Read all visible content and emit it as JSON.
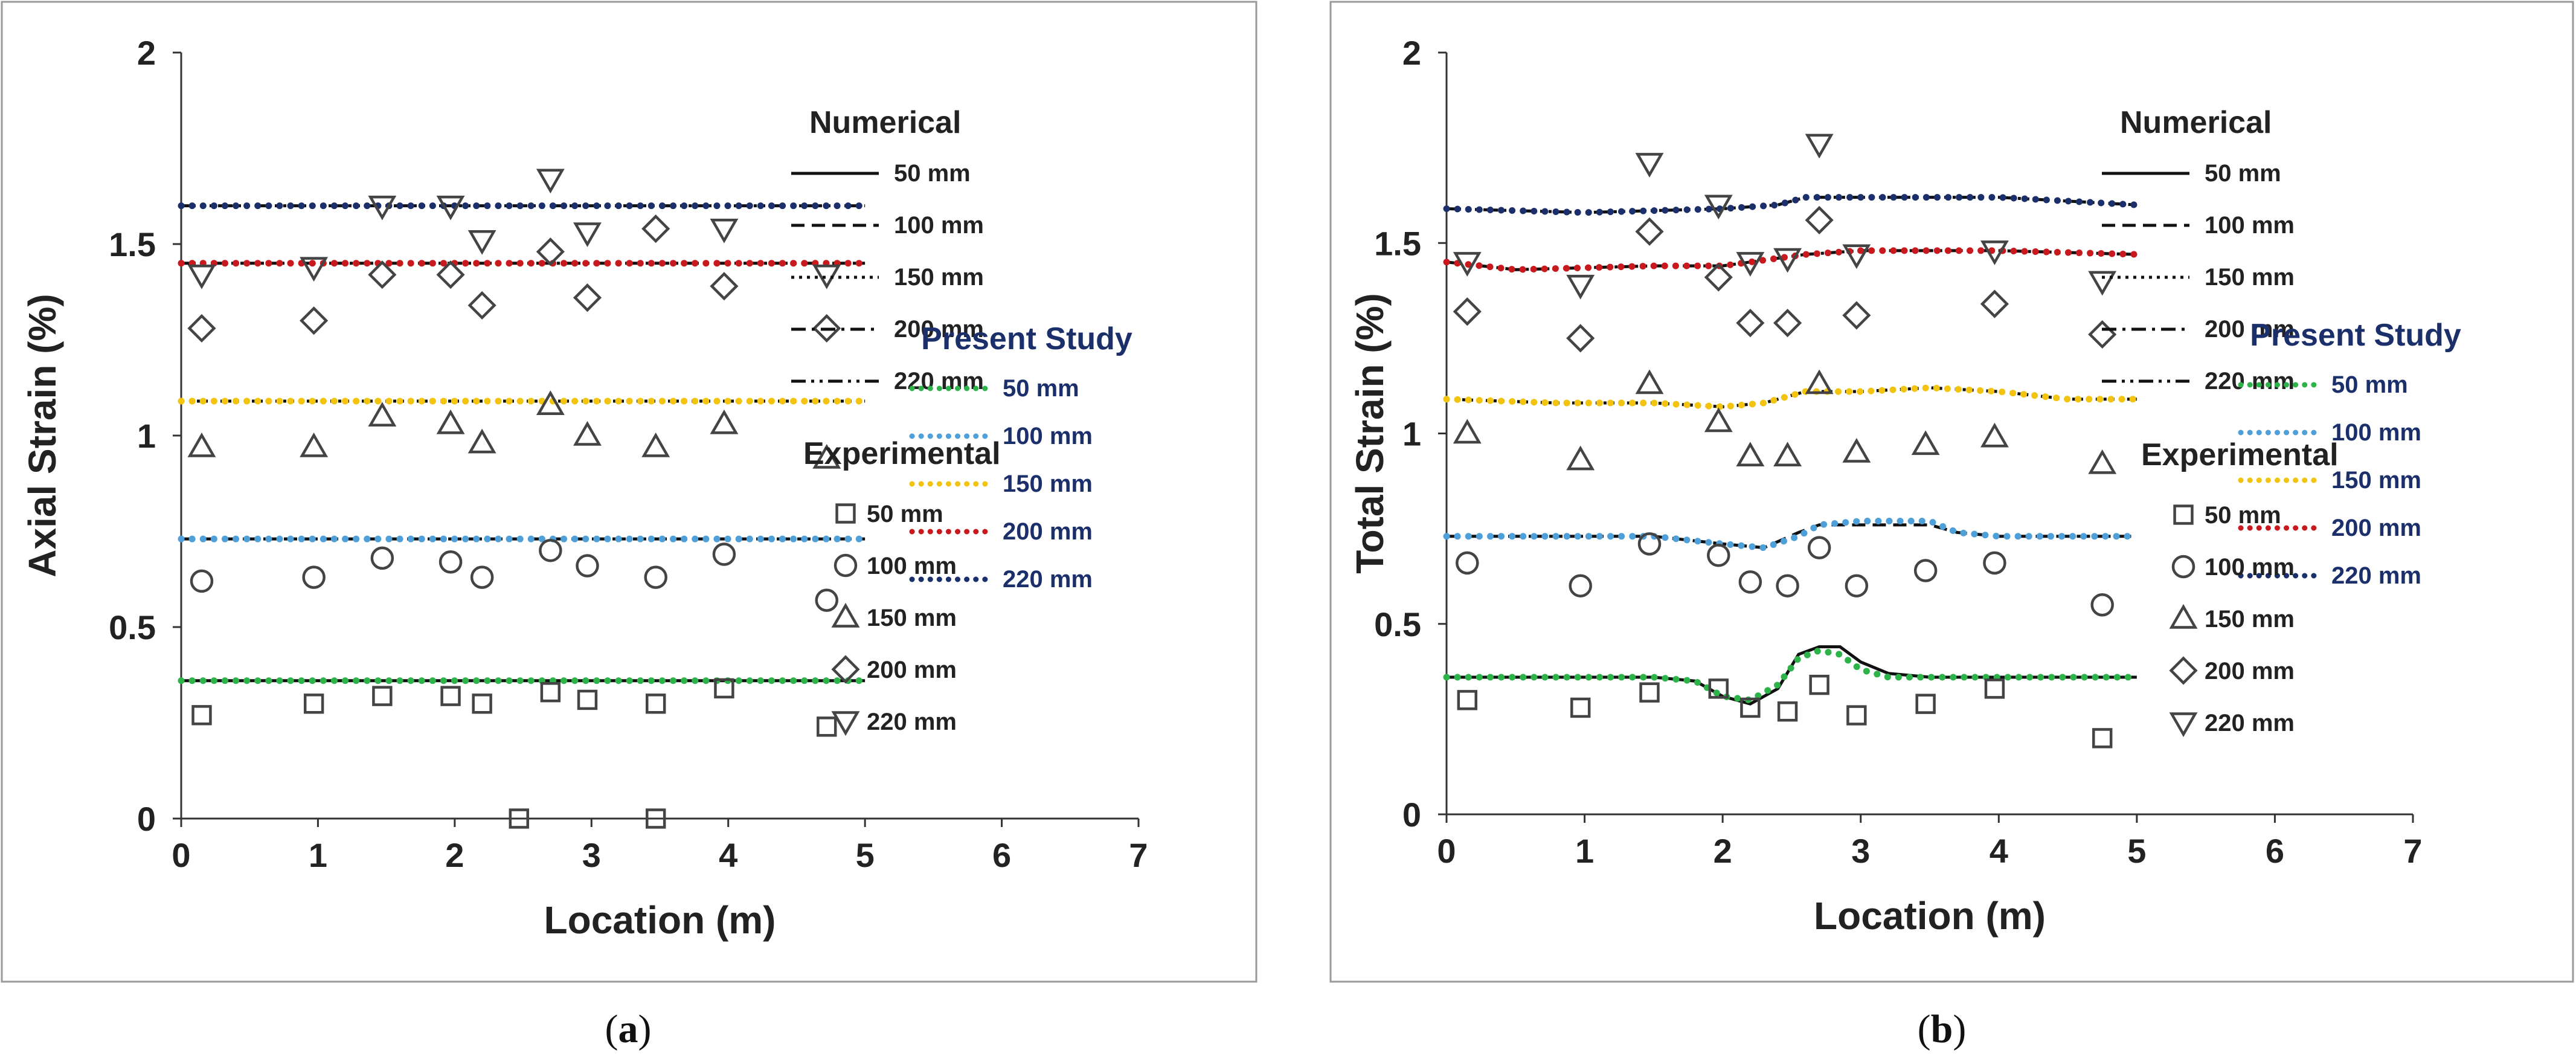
{
  "chart_data": [
    {
      "type": "line+scatter",
      "panel_label": "a",
      "xlabel": "Location (m)",
      "ylabel": "Axial Strain (%)",
      "xlim": [
        0,
        7
      ],
      "ylim": [
        0,
        2
      ],
      "xticks": [
        0,
        1,
        2,
        3,
        4,
        5,
        6,
        7
      ],
      "yticks": [
        0,
        0.5,
        1,
        1.5,
        2
      ],
      "ytick_labels": [
        "0",
        "0.5",
        "1",
        "1.5",
        "2"
      ],
      "legend": {
        "numerical_title": "Numerical",
        "present_title": "Present Study",
        "experimental_title": "Experimental"
      },
      "colors": {
        "50 mm": "#2db34a",
        "100 mm": "#4f9fd8",
        "150 mm": "#f2c30f",
        "200 mm": "#c8191e",
        "220 mm": "#1b2f6b"
      },
      "numerical": [
        {
          "name": "50 mm",
          "style": "solid",
          "x": [
            0,
            5
          ],
          "y": [
            0.36,
            0.36
          ]
        },
        {
          "name": "100 mm",
          "style": "dashed",
          "x": [
            0,
            5
          ],
          "y": [
            0.73,
            0.73
          ]
        },
        {
          "name": "150 mm",
          "style": "dotted",
          "x": [
            0,
            5
          ],
          "y": [
            1.09,
            1.09
          ]
        },
        {
          "name": "200 mm",
          "style": "dashdot",
          "x": [
            0,
            5
          ],
          "y": [
            1.45,
            1.45
          ]
        },
        {
          "name": "220 mm",
          "style": "dashdotdot",
          "x": [
            0,
            5
          ],
          "y": [
            1.6,
            1.6
          ]
        }
      ],
      "present_study": [
        {
          "name": "50 mm",
          "x": [
            0,
            5
          ],
          "y": [
            0.36,
            0.36
          ]
        },
        {
          "name": "100 mm",
          "x": [
            0,
            5
          ],
          "y": [
            0.73,
            0.73
          ]
        },
        {
          "name": "150 mm",
          "x": [
            0,
            5
          ],
          "y": [
            1.09,
            1.09
          ]
        },
        {
          "name": "200 mm",
          "x": [
            0,
            5
          ],
          "y": [
            1.45,
            1.45
          ]
        },
        {
          "name": "220 mm",
          "x": [
            0,
            5
          ],
          "y": [
            1.6,
            1.6
          ]
        }
      ],
      "experimental": [
        {
          "name": "50 mm",
          "marker": "square",
          "x": [
            0.15,
            0.97,
            1.47,
            1.97,
            2.2,
            2.7,
            2.97,
            3.47,
            3.97,
            4.72,
            2.47,
            3.47
          ],
          "y": [
            0.27,
            0.3,
            0.32,
            0.32,
            0.3,
            0.33,
            0.31,
            0.3,
            0.34,
            0.24,
            0.0,
            0.0
          ]
        },
        {
          "name": "100 mm",
          "marker": "circle",
          "x": [
            0.15,
            0.97,
            1.47,
            1.97,
            2.2,
            2.7,
            2.97,
            3.47,
            3.97,
            4.72
          ],
          "y": [
            0.62,
            0.63,
            0.68,
            0.67,
            0.63,
            0.7,
            0.66,
            0.63,
            0.69,
            0.57
          ]
        },
        {
          "name": "150 mm",
          "marker": "triangle-up",
          "x": [
            0.15,
            0.97,
            1.47,
            1.97,
            2.2,
            2.7,
            2.97,
            3.47,
            3.97,
            4.72
          ],
          "y": [
            0.97,
            0.97,
            1.05,
            1.03,
            0.98,
            1.08,
            1.0,
            0.97,
            1.03,
            0.94
          ]
        },
        {
          "name": "200 mm",
          "marker": "diamond",
          "x": [
            0.15,
            0.97,
            1.47,
            1.97,
            2.2,
            2.7,
            2.97,
            3.47,
            3.97,
            4.72
          ],
          "y": [
            1.28,
            1.3,
            1.42,
            1.42,
            1.34,
            1.48,
            1.36,
            1.54,
            1.39,
            1.28
          ]
        },
        {
          "name": "220 mm",
          "marker": "triangle-down",
          "x": [
            0.15,
            0.97,
            1.47,
            1.97,
            2.2,
            2.7,
            2.97,
            3.97,
            4.72
          ],
          "y": [
            1.42,
            1.44,
            1.6,
            1.6,
            1.51,
            1.67,
            1.53,
            1.54,
            1.42
          ]
        }
      ]
    },
    {
      "type": "line+scatter",
      "panel_label": "b",
      "xlabel": "Location (m)",
      "ylabel": "Total Strain (%)",
      "xlim": [
        0,
        7
      ],
      "ylim": [
        0,
        2
      ],
      "xticks": [
        0,
        1,
        2,
        3,
        4,
        5,
        6,
        7
      ],
      "yticks": [
        0,
        0.5,
        1,
        1.5,
        2
      ],
      "ytick_labels": [
        "0",
        "0.5",
        "1",
        "1.5",
        "2"
      ],
      "legend": {
        "numerical_title": "Numerical",
        "present_title": "Present Study",
        "experimental_title": "Experimental"
      },
      "colors": {
        "50 mm": "#2db34a",
        "100 mm": "#4f9fd8",
        "150 mm": "#f2c30f",
        "200 mm": "#c8191e",
        "220 mm": "#1b2f6b"
      },
      "numerical": [
        {
          "name": "50 mm",
          "style": "solid",
          "x": [
            0,
            1.5,
            1.8,
            2.0,
            2.2,
            2.4,
            2.55,
            2.7,
            2.85,
            3.0,
            3.2,
            3.5,
            5
          ],
          "y": [
            0.36,
            0.36,
            0.35,
            0.31,
            0.29,
            0.33,
            0.42,
            0.44,
            0.44,
            0.4,
            0.37,
            0.36,
            0.36
          ]
        },
        {
          "name": "100 mm",
          "style": "dashed",
          "x": [
            0,
            1.5,
            2.0,
            2.3,
            2.55,
            2.7,
            3.0,
            3.5,
            3.7,
            4.0,
            5
          ],
          "y": [
            0.73,
            0.73,
            0.71,
            0.7,
            0.74,
            0.76,
            0.76,
            0.76,
            0.74,
            0.73,
            0.73
          ]
        },
        {
          "name": "150 mm",
          "style": "dotted",
          "x": [
            0,
            0.8,
            1.5,
            2.0,
            2.3,
            2.6,
            3.0,
            3.5,
            4.0,
            4.5,
            5
          ],
          "y": [
            1.09,
            1.08,
            1.08,
            1.07,
            1.08,
            1.11,
            1.11,
            1.12,
            1.11,
            1.09,
            1.09
          ]
        },
        {
          "name": "200 mm",
          "style": "dashdot",
          "x": [
            0,
            0.5,
            1.5,
            2.0,
            2.6,
            3.0,
            4.0,
            5
          ],
          "y": [
            1.45,
            1.43,
            1.44,
            1.44,
            1.47,
            1.48,
            1.48,
            1.47
          ]
        },
        {
          "name": "220 mm",
          "style": "dashdotdot",
          "x": [
            0,
            1.0,
            2.0,
            2.4,
            2.6,
            3.0,
            4.0,
            5
          ],
          "y": [
            1.59,
            1.58,
            1.59,
            1.6,
            1.62,
            1.62,
            1.62,
            1.6
          ]
        }
      ],
      "present_study": [
        {
          "name": "50 mm",
          "x": [
            0,
            1.5,
            1.8,
            2.0,
            2.2,
            2.4,
            2.55,
            2.7,
            2.85,
            3.0,
            3.2,
            3.5,
            5
          ],
          "y": [
            0.36,
            0.36,
            0.35,
            0.31,
            0.3,
            0.34,
            0.41,
            0.43,
            0.42,
            0.38,
            0.36,
            0.36,
            0.36
          ]
        },
        {
          "name": "100 mm",
          "x": [
            0,
            1.5,
            2.0,
            2.3,
            2.55,
            2.7,
            3.0,
            3.5,
            3.7,
            4.0,
            5
          ],
          "y": [
            0.73,
            0.73,
            0.71,
            0.7,
            0.73,
            0.76,
            0.77,
            0.77,
            0.74,
            0.73,
            0.73
          ]
        },
        {
          "name": "150 mm",
          "x": [
            0,
            0.8,
            1.5,
            2.0,
            2.3,
            2.6,
            3.0,
            3.5,
            4.0,
            4.5,
            5
          ],
          "y": [
            1.09,
            1.08,
            1.08,
            1.07,
            1.08,
            1.11,
            1.11,
            1.12,
            1.11,
            1.09,
            1.09
          ]
        },
        {
          "name": "200 mm",
          "x": [
            0,
            0.5,
            1.5,
            2.0,
            2.6,
            3.0,
            4.0,
            5
          ],
          "y": [
            1.45,
            1.43,
            1.44,
            1.44,
            1.47,
            1.48,
            1.48,
            1.47
          ]
        },
        {
          "name": "220 mm",
          "x": [
            0,
            1.0,
            2.0,
            2.4,
            2.6,
            3.0,
            4.0,
            5
          ],
          "y": [
            1.59,
            1.58,
            1.59,
            1.6,
            1.62,
            1.62,
            1.62,
            1.6
          ]
        }
      ],
      "experimental": [
        {
          "name": "50 mm",
          "marker": "square",
          "x": [
            0.15,
            0.97,
            1.47,
            1.97,
            2.2,
            2.47,
            2.7,
            2.97,
            3.47,
            3.97,
            4.75
          ],
          "y": [
            0.3,
            0.28,
            0.32,
            0.33,
            0.28,
            0.27,
            0.34,
            0.26,
            0.29,
            0.33,
            0.2
          ]
        },
        {
          "name": "100 mm",
          "marker": "circle",
          "x": [
            0.15,
            0.97,
            1.47,
            1.97,
            2.2,
            2.47,
            2.7,
            2.97,
            3.47,
            3.97,
            4.75
          ],
          "y": [
            0.66,
            0.6,
            0.71,
            0.68,
            0.61,
            0.6,
            0.7,
            0.6,
            0.64,
            0.66,
            0.55
          ]
        },
        {
          "name": "150 mm",
          "marker": "triangle-up",
          "x": [
            0.15,
            0.97,
            1.47,
            1.97,
            2.2,
            2.47,
            2.7,
            2.97,
            3.47,
            3.97,
            4.75
          ],
          "y": [
            1.0,
            0.93,
            1.13,
            1.03,
            0.94,
            0.94,
            1.13,
            0.95,
            0.97,
            0.99,
            0.92
          ]
        },
        {
          "name": "200 mm",
          "marker": "diamond",
          "x": [
            0.15,
            0.97,
            1.47,
            1.97,
            2.2,
            2.47,
            2.7,
            2.97,
            3.97,
            4.75
          ],
          "y": [
            1.32,
            1.25,
            1.53,
            1.41,
            1.29,
            1.29,
            1.56,
            1.31,
            1.34,
            1.26
          ]
        },
        {
          "name": "220 mm",
          "marker": "triangle-down",
          "x": [
            0.15,
            0.97,
            1.47,
            1.97,
            2.2,
            2.47,
            2.7,
            2.97,
            3.97,
            4.75
          ],
          "y": [
            1.45,
            1.39,
            1.71,
            1.6,
            1.45,
            1.46,
            1.76,
            1.47,
            1.48,
            1.4
          ]
        }
      ]
    }
  ]
}
